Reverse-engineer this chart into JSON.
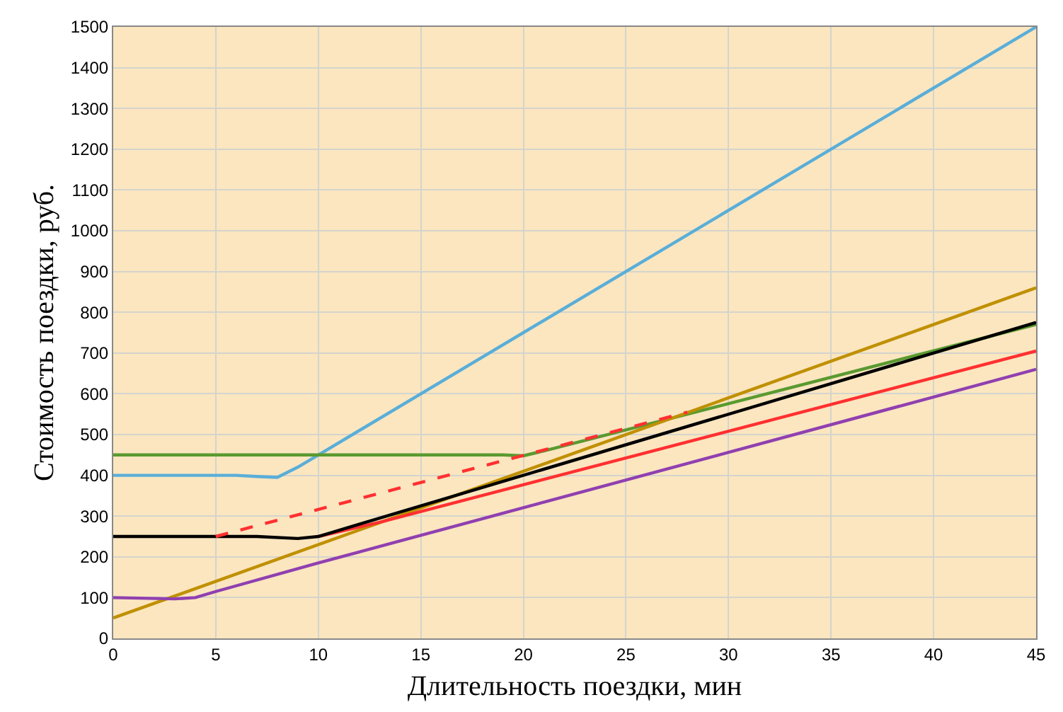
{
  "chart_data": {
    "type": "line",
    "xlabel": "Длительность поездки, мин",
    "ylabel": "Стоимость поездки, руб.",
    "xlim": [
      0,
      45
    ],
    "xticks": [
      0,
      5,
      10,
      15,
      20,
      25,
      30,
      35,
      40,
      45
    ],
    "ylim": [
      0,
      1500
    ],
    "yticks": [
      0,
      100,
      200,
      300,
      400,
      500,
      600,
      700,
      800,
      900,
      1000,
      1100,
      1200,
      1300,
      1400,
      1500
    ],
    "grid": true,
    "marker": "none",
    "series": [
      {
        "color": "#5aaed8",
        "line_style": "solid",
        "x": [
          0,
          6,
          7,
          8,
          9,
          10,
          45
        ],
        "values": [
          400,
          400,
          397,
          395,
          420,
          450,
          1500
        ]
      },
      {
        "color": "#5a9a30",
        "line_style": "solid",
        "x": [
          0,
          19,
          20,
          21,
          28,
          45
        ],
        "values": [
          450,
          450,
          448,
          460,
          550,
          770
        ]
      },
      {
        "color": "#c09000",
        "line_style": "solid",
        "x": [
          0,
          45
        ],
        "values": [
          50,
          860
        ]
      },
      {
        "color": "#9040b0",
        "line_style": "solid",
        "x": [
          0,
          3,
          4,
          5,
          10,
          45
        ],
        "values": [
          100,
          97,
          100,
          115,
          185,
          660
        ]
      },
      {
        "color": "#ff3030",
        "line_style": "solid",
        "x": [
          10,
          13,
          45
        ],
        "values": [
          250,
          285,
          705
        ]
      },
      {
        "color": "#000000",
        "line_style": "solid",
        "x": [
          0,
          7,
          9,
          10,
          12,
          45
        ],
        "values": [
          250,
          250,
          245,
          250,
          280,
          775
        ]
      },
      {
        "color": "#ff3030",
        "line_style": "dashed",
        "x": [
          5,
          28
        ],
        "values": [
          250,
          555
        ]
      }
    ]
  }
}
